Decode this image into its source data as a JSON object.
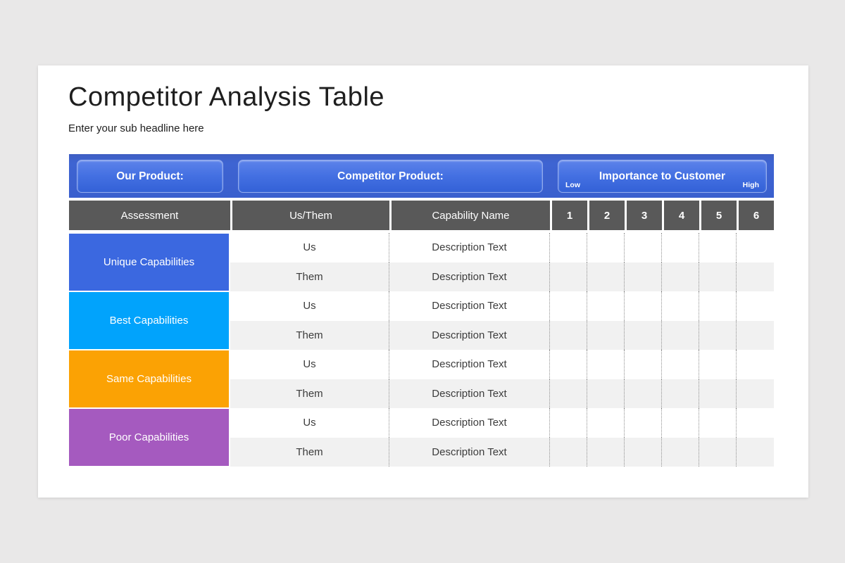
{
  "colors": {
    "page_background": "#e9e8e8",
    "bar_blue": "#3c60ce",
    "button_blue_top": "#5d83ea",
    "button_blue_bottom": "#3361d7",
    "header_gray": "#595959",
    "row_alt_gray": "#f1f1f1",
    "unique_blue": "#3b68e0",
    "best_cyan": "#01a3fc",
    "same_orange": "#fba204",
    "poor_purple": "#a55abf"
  },
  "slide": {
    "title": "Competitor Analysis Table",
    "subtitle": "Enter your sub headline here"
  },
  "header_bar": {
    "our_product_label": "Our Product:",
    "competitor_product_label": "Competitor Product:",
    "importance_label": "Importance to Customer",
    "low_label": "Low",
    "high_label": "High"
  },
  "table": {
    "assessment_header": "Assessment",
    "us_them_header": "Us/Them",
    "capability_header": "Capability Name",
    "score_headers": [
      "1",
      "2",
      "3",
      "4",
      "5",
      "6"
    ],
    "groups": [
      {
        "label": "Unique Capabilities",
        "color": "#3b68e0",
        "rows": [
          {
            "us_them": "Us",
            "capability": "Description Text",
            "scores": [
              "",
              "",
              "",
              "",
              "",
              ""
            ]
          },
          {
            "us_them": "Them",
            "capability": "Description Text",
            "scores": [
              "",
              "",
              "",
              "",
              "",
              ""
            ]
          }
        ]
      },
      {
        "label": "Best Capabilities",
        "color": "#01a3fc",
        "rows": [
          {
            "us_them": "Us",
            "capability": "Description Text",
            "scores": [
              "",
              "",
              "",
              "",
              "",
              ""
            ]
          },
          {
            "us_them": "Them",
            "capability": "Description Text",
            "scores": [
              "",
              "",
              "",
              "",
              "",
              ""
            ]
          }
        ]
      },
      {
        "label": "Same Capabilities",
        "color": "#fba204",
        "rows": [
          {
            "us_them": "Us",
            "capability": "Description Text",
            "scores": [
              "",
              "",
              "",
              "",
              "",
              ""
            ]
          },
          {
            "us_them": "Them",
            "capability": "Description Text",
            "scores": [
              "",
              "",
              "",
              "",
              "",
              ""
            ]
          }
        ]
      },
      {
        "label": "Poor Capabilities",
        "color": "#a55abf",
        "rows": [
          {
            "us_them": "Us",
            "capability": "Description Text",
            "scores": [
              "",
              "",
              "",
              "",
              "",
              ""
            ]
          },
          {
            "us_them": "Them",
            "capability": "Description Text",
            "scores": [
              "",
              "",
              "",
              "",
              "",
              ""
            ]
          }
        ]
      }
    ]
  }
}
